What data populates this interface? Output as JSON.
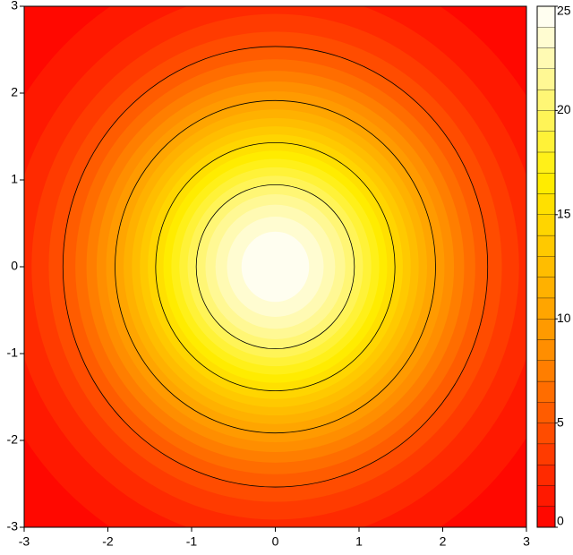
{
  "chart_data": {
    "type": "contour",
    "xlim": [
      -3,
      3
    ],
    "ylim": [
      -3,
      3
    ],
    "xticks": [
      -3,
      -2,
      -1,
      0,
      1,
      2,
      3
    ],
    "yticks": [
      -3,
      -2,
      -1,
      0,
      1,
      2,
      3
    ],
    "center": [
      0,
      0
    ],
    "peak": 25,
    "sigma": 1.414,
    "zlim": [
      0,
      25
    ],
    "zticks": [
      0,
      5,
      10,
      15,
      20,
      25
    ],
    "level_step": 1,
    "contour_levels": [
      5,
      10,
      15,
      20
    ],
    "colors": [
      "#ff0000",
      "#ff8c00",
      "#ffee00",
      "#ffffff"
    ],
    "line_color": "#000000"
  }
}
